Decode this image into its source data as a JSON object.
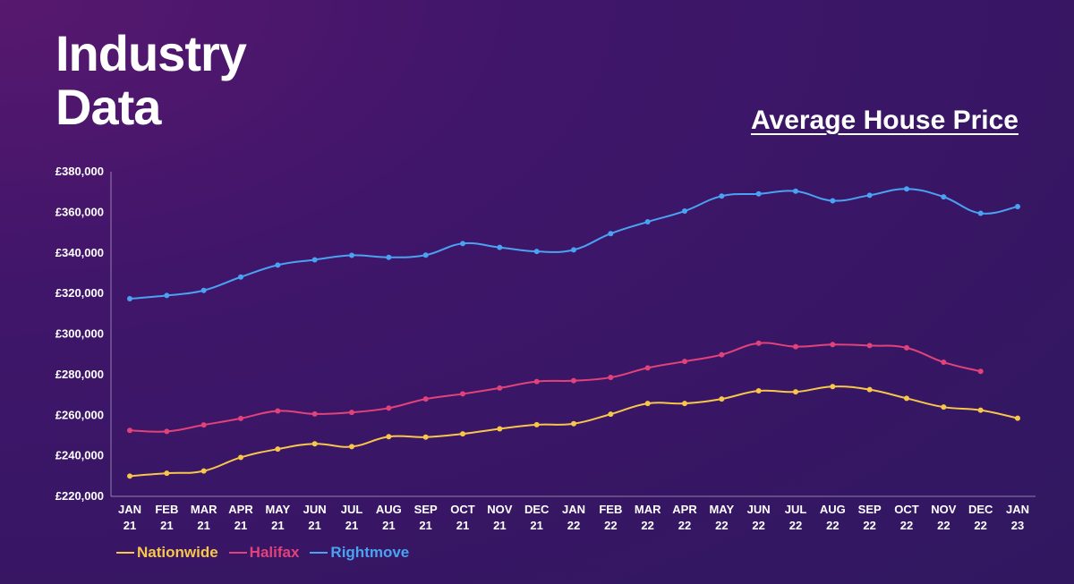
{
  "page": {
    "title_line1": "Industry",
    "title_line2": "Data"
  },
  "chart_data": {
    "type": "line",
    "title": "Average House Price",
    "xlabel": "",
    "ylabel": "",
    "ylim": [
      220000,
      380000
    ],
    "yticks": [
      220000,
      240000,
      260000,
      280000,
      300000,
      320000,
      340000,
      360000,
      380000
    ],
    "ytick_labels": [
      "£220,000",
      "£240,000",
      "£260,000",
      "£280,000",
      "£300,000",
      "£320,000",
      "£340,000",
      "£360,000",
      "£380,000"
    ],
    "categories": [
      [
        "JAN",
        "21"
      ],
      [
        "FEB",
        "21"
      ],
      [
        "MAR",
        "21"
      ],
      [
        "APR",
        "21"
      ],
      [
        "MAY",
        "21"
      ],
      [
        "JUN",
        "21"
      ],
      [
        "JUL",
        "21"
      ],
      [
        "AUG",
        "21"
      ],
      [
        "SEP",
        "21"
      ],
      [
        "OCT",
        "21"
      ],
      [
        "NOV",
        "21"
      ],
      [
        "DEC",
        "21"
      ],
      [
        "JAN",
        "22"
      ],
      [
        "FEB",
        "22"
      ],
      [
        "MAR",
        "22"
      ],
      [
        "APR",
        "22"
      ],
      [
        "MAY",
        "22"
      ],
      [
        "JUN",
        "22"
      ],
      [
        "JUL",
        "22"
      ],
      [
        "AUG",
        "22"
      ],
      [
        "SEP",
        "22"
      ],
      [
        "OCT",
        "22"
      ],
      [
        "NOV",
        "22"
      ],
      [
        "DEC",
        "22"
      ],
      [
        "JAN",
        "23"
      ]
    ],
    "grid": false,
    "legend_position": "bottom-left",
    "series": [
      {
        "name": "Nationwide",
        "color": "#f7c64a",
        "values": [
          230000,
          231400,
          232500,
          239200,
          243300,
          245900,
          244500,
          249400,
          249200,
          250800,
          253300,
          255300,
          255800,
          260500,
          265800,
          265800,
          268000,
          272000,
          271500,
          274100,
          272600,
          268300,
          264000,
          262500,
          258500
        ]
      },
      {
        "name": "Halifax",
        "color": "#e2427a",
        "values": [
          252500,
          252000,
          255200,
          258400,
          262100,
          260600,
          261400,
          263500,
          268000,
          270500,
          273400,
          276600,
          277000,
          278600,
          283300,
          286500,
          289800,
          295500,
          293800,
          294800,
          294300,
          293200,
          286100,
          281600,
          null
        ]
      },
      {
        "name": "Rightmove",
        "color": "#4aa2f2",
        "values": [
          317400,
          319000,
          321500,
          328100,
          334000,
          336600,
          338800,
          337800,
          338900,
          344600,
          342700,
          340700,
          341500,
          349500,
          355300,
          360600,
          368000,
          369100,
          370400,
          365700,
          368400,
          371500,
          367600,
          359500,
          362800
        ]
      }
    ]
  }
}
